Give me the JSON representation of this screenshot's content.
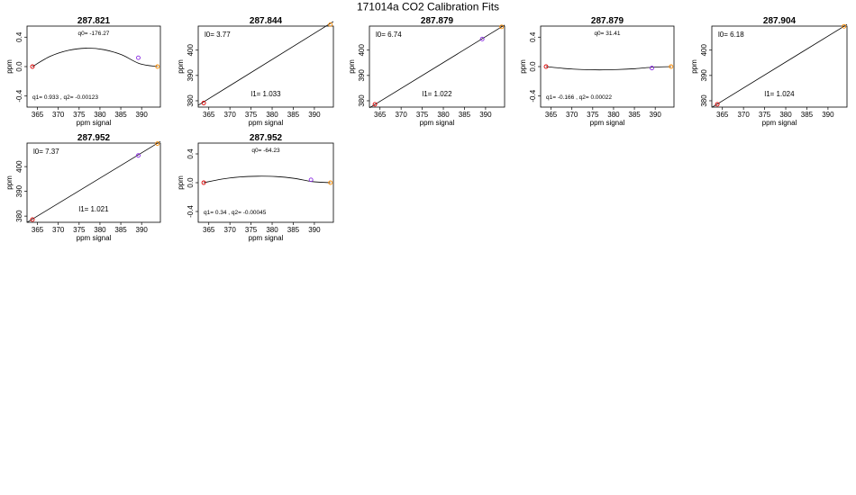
{
  "figure": {
    "title": "171014a   CO2 Calibration Fits"
  },
  "chart_data": [
    {
      "type": "scatter",
      "title": "287.821",
      "xlabel": "ppm signal",
      "ylabel": "ppm",
      "xlim": [
        362.5,
        394.5
      ],
      "ylim": [
        -0.55,
        0.55
      ],
      "xticks": [
        365,
        370,
        375,
        380,
        385,
        390
      ],
      "yticks": [
        -0.4,
        0.0,
        0.4
      ],
      "ytick_labels": [
        "-0.4",
        "0.0",
        "0.4"
      ],
      "fit": {
        "kind": "quadratic",
        "q0": -176.27,
        "q1": 0.933,
        "q2": -0.00123
      },
      "points": [
        {
          "x": 363.8,
          "y": 0.0,
          "color": "#dd0000"
        },
        {
          "x": 389.2,
          "y": 0.12,
          "color": "#8a2be2"
        },
        {
          "x": 393.8,
          "y": 0.0,
          "color": "#ff8c00"
        }
      ],
      "curve_y": [
        0.0,
        0.14,
        0.22,
        0.25,
        0.23,
        0.16,
        0.04,
        0.0
      ],
      "annotations": [
        {
          "text": "q0= -176.27",
          "pos": "top"
        },
        {
          "text": "q1= 0.933 ,  q2= -0.00123",
          "pos": "bottom-left"
        }
      ]
    },
    {
      "type": "scatter",
      "title": "287.844",
      "xlabel": "ppm signal",
      "ylabel": "ppm",
      "xlim": [
        362.5,
        394.5
      ],
      "ylim": [
        377.5,
        409.5
      ],
      "xticks": [
        365,
        370,
        375,
        380,
        385,
        390
      ],
      "yticks": [
        380,
        390,
        400
      ],
      "ytick_labels": [
        "380",
        "390",
        "400"
      ],
      "fit": {
        "kind": "linear",
        "l0": 3.77,
        "l1": 1.033
      },
      "points": [
        {
          "x": 363.8,
          "y": 379.1,
          "color": "#dd0000"
        },
        {
          "x": 393.8,
          "y": 410.1,
          "color": "#ff8c00"
        }
      ],
      "annotations": [
        {
          "text": "l0=  3.77",
          "pos": "top-left"
        },
        {
          "text": "l1=  1.033",
          "pos": "lower-middle"
        }
      ]
    },
    {
      "type": "scatter",
      "title": "287.879",
      "xlabel": "ppm signal",
      "ylabel": "ppm",
      "xlim": [
        362.5,
        394.5
      ],
      "ylim": [
        377.5,
        409.5
      ],
      "xticks": [
        365,
        370,
        375,
        380,
        385,
        390
      ],
      "yticks": [
        380,
        390,
        400
      ],
      "ytick_labels": [
        "380",
        "390",
        "400"
      ],
      "fit": {
        "kind": "linear",
        "l0": 6.74,
        "l1": 1.022
      },
      "points": [
        {
          "x": 363.8,
          "y": 378.6,
          "color": "#dd0000"
        },
        {
          "x": 389.2,
          "y": 404.4,
          "color": "#8a2be2"
        },
        {
          "x": 393.8,
          "y": 409.2,
          "color": "#ff8c00"
        }
      ],
      "annotations": [
        {
          "text": "l0=  6.74",
          "pos": "top-left"
        },
        {
          "text": "l1=  1.022",
          "pos": "lower-middle"
        }
      ]
    },
    {
      "type": "scatter",
      "title": "287.879",
      "xlabel": "ppm signal",
      "ylabel": "ppm",
      "xlim": [
        362.5,
        394.5
      ],
      "ylim": [
        -0.55,
        0.55
      ],
      "xticks": [
        365,
        370,
        375,
        380,
        385,
        390
      ],
      "yticks": [
        -0.4,
        0.0,
        0.4
      ],
      "ytick_labels": [
        "-0.4",
        "0.0",
        "0.4"
      ],
      "fit": {
        "kind": "quadratic",
        "q0": 31.41,
        "q1": -0.166,
        "q2": 0.00022
      },
      "points": [
        {
          "x": 363.8,
          "y": 0.0,
          "color": "#dd0000"
        },
        {
          "x": 389.2,
          "y": -0.02,
          "color": "#8a2be2"
        },
        {
          "x": 393.8,
          "y": 0.0,
          "color": "#ff8c00"
        }
      ],
      "curve_y": [
        0.0,
        -0.025,
        -0.04,
        -0.045,
        -0.04,
        -0.028,
        -0.008,
        0.0
      ],
      "annotations": [
        {
          "text": "q0= 31.41",
          "pos": "top"
        },
        {
          "text": "q1= -0.166 ,  q2= 0.00022",
          "pos": "bottom-left"
        }
      ]
    },
    {
      "type": "scatter",
      "title": "287.904",
      "xlabel": "ppm signal",
      "ylabel": "ppm",
      "xlim": [
        362.5,
        394.5
      ],
      "ylim": [
        377.5,
        409.5
      ],
      "xticks": [
        365,
        370,
        375,
        380,
        385,
        390
      ],
      "yticks": [
        380,
        390,
        400
      ],
      "ytick_labels": [
        "380",
        "390",
        "400"
      ],
      "fit": {
        "kind": "linear",
        "l0": 6.18,
        "l1": 1.024
      },
      "points": [
        {
          "x": 363.8,
          "y": 378.6,
          "color": "#dd0000"
        },
        {
          "x": 393.8,
          "y": 409.4,
          "color": "#ff8c00"
        }
      ],
      "annotations": [
        {
          "text": "l0=  6.18",
          "pos": "top-left"
        },
        {
          "text": "l1=  1.024",
          "pos": "lower-middle"
        }
      ]
    },
    {
      "type": "scatter",
      "title": "287.952",
      "xlabel": "ppm signal",
      "ylabel": "ppm",
      "xlim": [
        362.5,
        394.5
      ],
      "ylim": [
        377.5,
        409.5
      ],
      "xticks": [
        365,
        370,
        375,
        380,
        385,
        390
      ],
      "yticks": [
        380,
        390,
        400
      ],
      "ytick_labels": [
        "380",
        "390",
        "400"
      ],
      "fit": {
        "kind": "linear",
        "l0": 7.37,
        "l1": 1.021
      },
      "points": [
        {
          "x": 363.8,
          "y": 378.6,
          "color": "#dd0000"
        },
        {
          "x": 389.2,
          "y": 404.5,
          "color": "#8a2be2"
        },
        {
          "x": 393.8,
          "y": 409.3,
          "color": "#ff8c00"
        }
      ],
      "annotations": [
        {
          "text": "l0=  7.37",
          "pos": "top-left"
        },
        {
          "text": "l1=  1.021",
          "pos": "lower-middle"
        }
      ]
    },
    {
      "type": "scatter",
      "title": "287.952",
      "xlabel": "ppm signal",
      "ylabel": "ppm",
      "xlim": [
        362.5,
        394.5
      ],
      "ylim": [
        -0.55,
        0.55
      ],
      "xticks": [
        365,
        370,
        375,
        380,
        385,
        390
      ],
      "yticks": [
        -0.4,
        0.0,
        0.4
      ],
      "ytick_labels": [
        "-0.4",
        "0.0",
        "0.4"
      ],
      "fit": {
        "kind": "quadratic",
        "q0": -64.23,
        "q1": 0.34,
        "q2": -0.00045
      },
      "points": [
        {
          "x": 363.8,
          "y": 0.0,
          "color": "#dd0000"
        },
        {
          "x": 389.2,
          "y": 0.04,
          "color": "#8a2be2"
        },
        {
          "x": 393.8,
          "y": 0.0,
          "color": "#ff8c00"
        }
      ],
      "curve_y": [
        0.0,
        0.05,
        0.08,
        0.09,
        0.085,
        0.06,
        0.015,
        0.0
      ],
      "annotations": [
        {
          "text": "q0= -64.23",
          "pos": "top"
        },
        {
          "text": "q1= 0.34 ,  q2= -0.00045",
          "pos": "bottom-left"
        }
      ]
    }
  ]
}
